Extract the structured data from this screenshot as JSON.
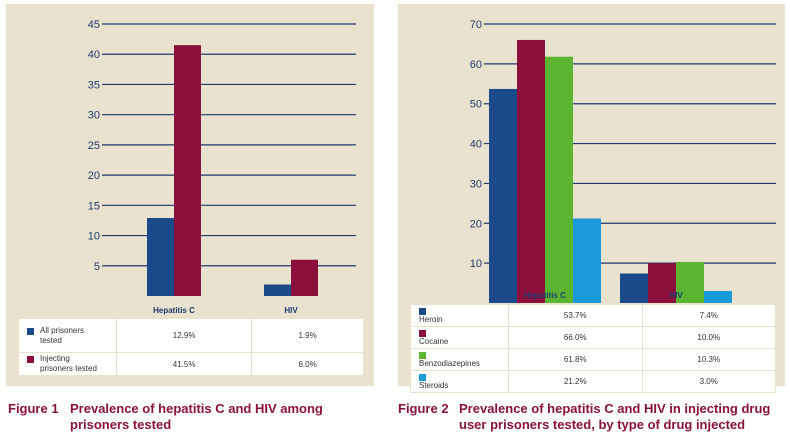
{
  "figure1": {
    "caption_num": "Figure 1",
    "caption_text": "Prevalence of hepatitis C and HIV among prisoners tested",
    "chart_data": {
      "type": "bar",
      "categories": [
        "Hepatitis C",
        "HIV"
      ],
      "series": [
        {
          "name": "All prisoners tested",
          "values": [
            12.9,
            1.9
          ],
          "color": "#1a4a8a",
          "labels": [
            "12.9%",
            "1.9%"
          ]
        },
        {
          "name": "Injecting prisoners tested",
          "values": [
            41.5,
            6.0
          ],
          "color": "#8a0f3a",
          "labels": [
            "41.5%",
            "6.0%"
          ]
        }
      ],
      "yticks": [
        5,
        10,
        15,
        20,
        25,
        30,
        35,
        40,
        45
      ],
      "ylim": [
        0,
        45
      ],
      "grid": true,
      "legend": "table-below"
    }
  },
  "figure2": {
    "caption_num": "Figure 2",
    "caption_text": "Prevalence of hepatitis C and HIV in injecting drug user prisoners tested, by type of drug injected",
    "chart_data": {
      "type": "bar",
      "categories": [
        "Hepatitis C",
        "HIV"
      ],
      "series": [
        {
          "name": "Heroin",
          "values": [
            53.7,
            7.4
          ],
          "color": "#1a4a8a",
          "labels": [
            "53.7%",
            "7.4%"
          ]
        },
        {
          "name": "Cocaine",
          "values": [
            66.0,
            10.0
          ],
          "color": "#8a0f3a",
          "labels": [
            "66.0%",
            "10.0%"
          ]
        },
        {
          "name": "Benzodiazepines",
          "values": [
            61.8,
            10.3
          ],
          "color": "#5cb531",
          "labels": [
            "61.8%",
            "10.3%"
          ]
        },
        {
          "name": "Steroids",
          "values": [
            21.2,
            3.0
          ],
          "color": "#1a9ad8",
          "labels": [
            "21.2%",
            "3.0%"
          ]
        }
      ],
      "yticks": [
        10,
        20,
        30,
        40,
        50,
        60,
        70
      ],
      "ylim": [
        0,
        70
      ],
      "grid": true,
      "legend": "table-below"
    }
  }
}
